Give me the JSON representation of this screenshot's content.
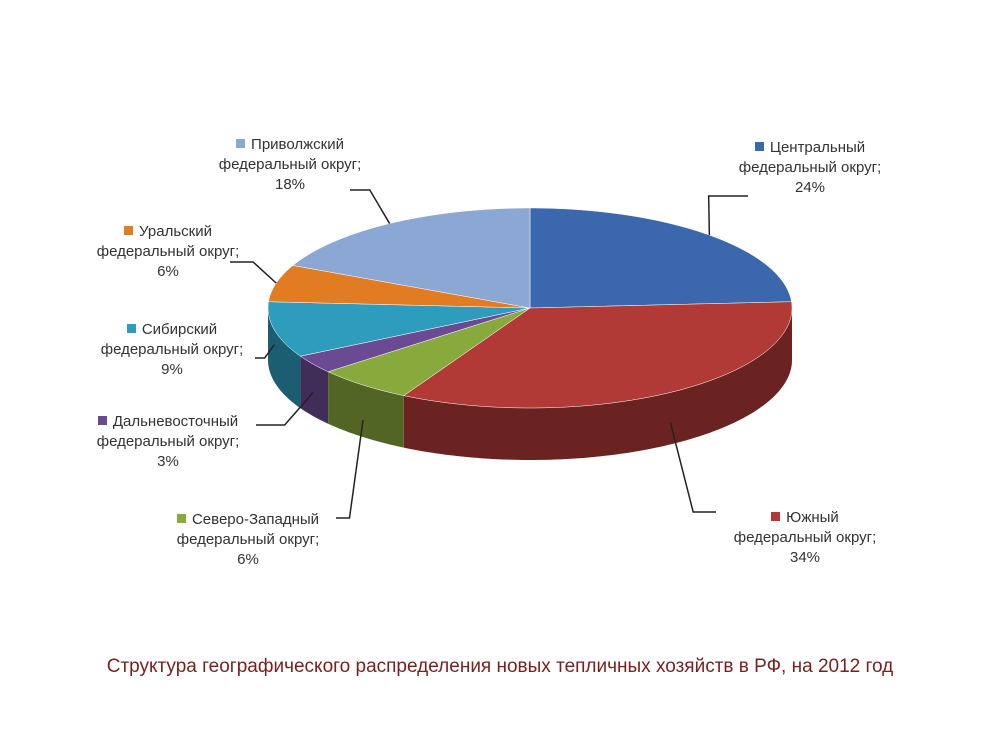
{
  "chart_data": {
    "type": "pie3d",
    "title": "Структура географического распределения новых тепличных хозяйств в РФ, на 2012 год",
    "values": [
      24,
      34,
      6,
      3,
      9,
      6,
      18
    ],
    "value_labels": [
      "Центральный федеральный округ; 24%",
      "Южный федеральный округ; 34%",
      "Северо-Западный федеральный округ; 6%",
      "Дальневосточный федеральный округ; 3%",
      "Сибирский федеральный округ; 9%",
      "Уральский федеральный округ; 6%",
      "Приволжский федеральный округ; 18%"
    ],
    "colors": [
      "#3b67ad",
      "#b13a37",
      "#88a93c",
      "#6a4b93",
      "#2e9dbd",
      "#e27c22",
      "#8ba7d3"
    ]
  }
}
